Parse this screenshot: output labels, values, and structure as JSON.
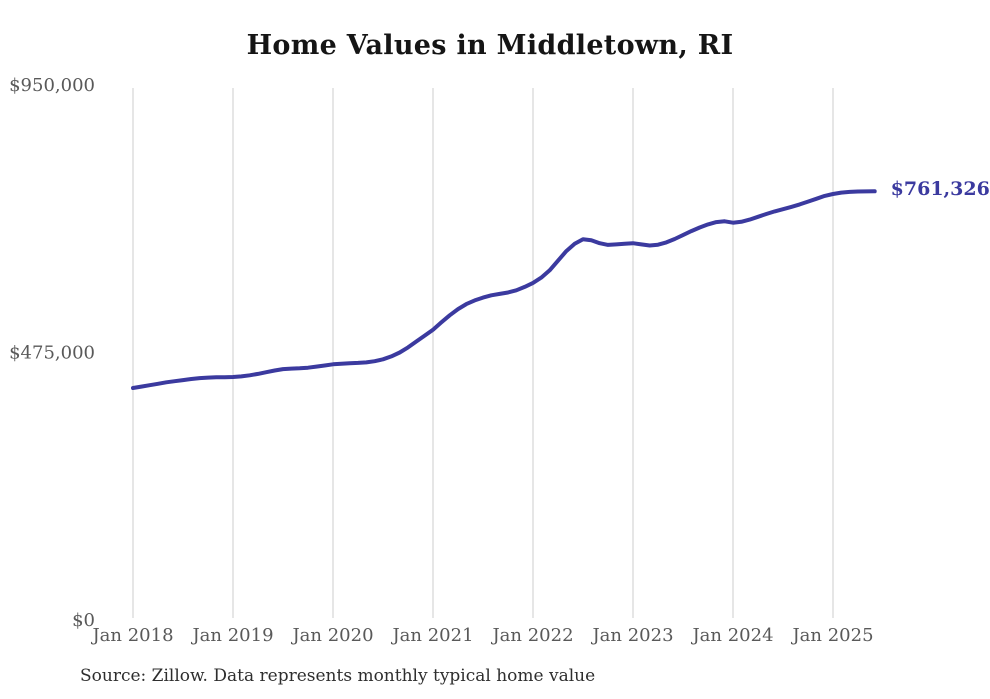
{
  "page": {
    "title": "Home Values in Middletown, RI",
    "source_note": "Source: Zillow. Data represents monthly typical home value"
  },
  "chart_data": {
    "type": "line",
    "title": "Home Values in Middletown, RI",
    "series_name": "Monthly typical home value",
    "x": [
      "2018-01",
      "2018-02",
      "2018-03",
      "2018-04",
      "2018-05",
      "2018-06",
      "2018-07",
      "2018-08",
      "2018-09",
      "2018-10",
      "2018-11",
      "2018-12",
      "2019-01",
      "2019-02",
      "2019-03",
      "2019-04",
      "2019-05",
      "2019-06",
      "2019-07",
      "2019-08",
      "2019-09",
      "2019-10",
      "2019-11",
      "2019-12",
      "2020-01",
      "2020-02",
      "2020-03",
      "2020-04",
      "2020-05",
      "2020-06",
      "2020-07",
      "2020-08",
      "2020-09",
      "2020-10",
      "2020-11",
      "2020-12",
      "2021-01",
      "2021-02",
      "2021-03",
      "2021-04",
      "2021-05",
      "2021-06",
      "2021-07",
      "2021-08",
      "2021-09",
      "2021-10",
      "2021-11",
      "2021-12",
      "2022-01",
      "2022-02",
      "2022-03",
      "2022-04",
      "2022-05",
      "2022-06",
      "2022-07",
      "2022-08",
      "2022-09",
      "2022-10",
      "2022-11",
      "2022-12",
      "2023-01",
      "2023-02",
      "2023-03",
      "2023-04",
      "2023-05",
      "2023-06",
      "2023-07",
      "2023-08",
      "2023-09",
      "2023-10",
      "2023-11",
      "2023-12",
      "2024-01",
      "2024-02",
      "2024-03",
      "2024-04",
      "2024-05",
      "2024-06",
      "2024-07",
      "2024-08",
      "2024-09",
      "2024-10",
      "2024-11",
      "2024-12",
      "2025-01",
      "2025-02",
      "2025-03",
      "2025-04",
      "2025-05",
      "2025-06"
    ],
    "values": [
      412000,
      414500,
      417000,
      419500,
      422000,
      424000,
      426000,
      428000,
      429500,
      430500,
      431000,
      431000,
      431500,
      432500,
      434500,
      437000,
      440000,
      443000,
      445500,
      446500,
      447000,
      448000,
      450000,
      452000,
      454000,
      455000,
      456000,
      456500,
      457500,
      459500,
      463000,
      468000,
      475000,
      484000,
      494500,
      505000,
      515500,
      528500,
      541000,
      552000,
      561000,
      567500,
      572500,
      576500,
      579000,
      581500,
      585500,
      591500,
      598500,
      608000,
      621000,
      638000,
      655000,
      668000,
      676000,
      674500,
      669000,
      666000,
      667000,
      668000,
      669000,
      667000,
      665000,
      666500,
      670500,
      676500,
      683500,
      690500,
      697000,
      702500,
      706500,
      708000,
      705500,
      707000,
      711000,
      716000,
      721000,
      725500,
      729500,
      733500,
      738000,
      743000,
      748000,
      753000,
      756500,
      759000,
      760200,
      760800,
      761100,
      761326
    ],
    "x_tick_labels": [
      "Jan 2018",
      "Jan 2019",
      "Jan 2020",
      "Jan 2021",
      "Jan 2022",
      "Jan 2023",
      "Jan 2024",
      "Jan 2025"
    ],
    "y_ticks": [
      {
        "value": 0,
        "label": "$0"
      },
      {
        "value": 475000,
        "label": "$475,000"
      },
      {
        "value": 950000,
        "label": "$950,000"
      }
    ],
    "ylim": [
      0,
      950000
    ],
    "xlabel": "",
    "ylabel": "",
    "legend": "none",
    "grid": "vertical-year-lines",
    "end_label": "$761,326",
    "line_color": "#3b3a9f",
    "grid_color": "#cccccc",
    "axis_label_color": "#595959"
  }
}
